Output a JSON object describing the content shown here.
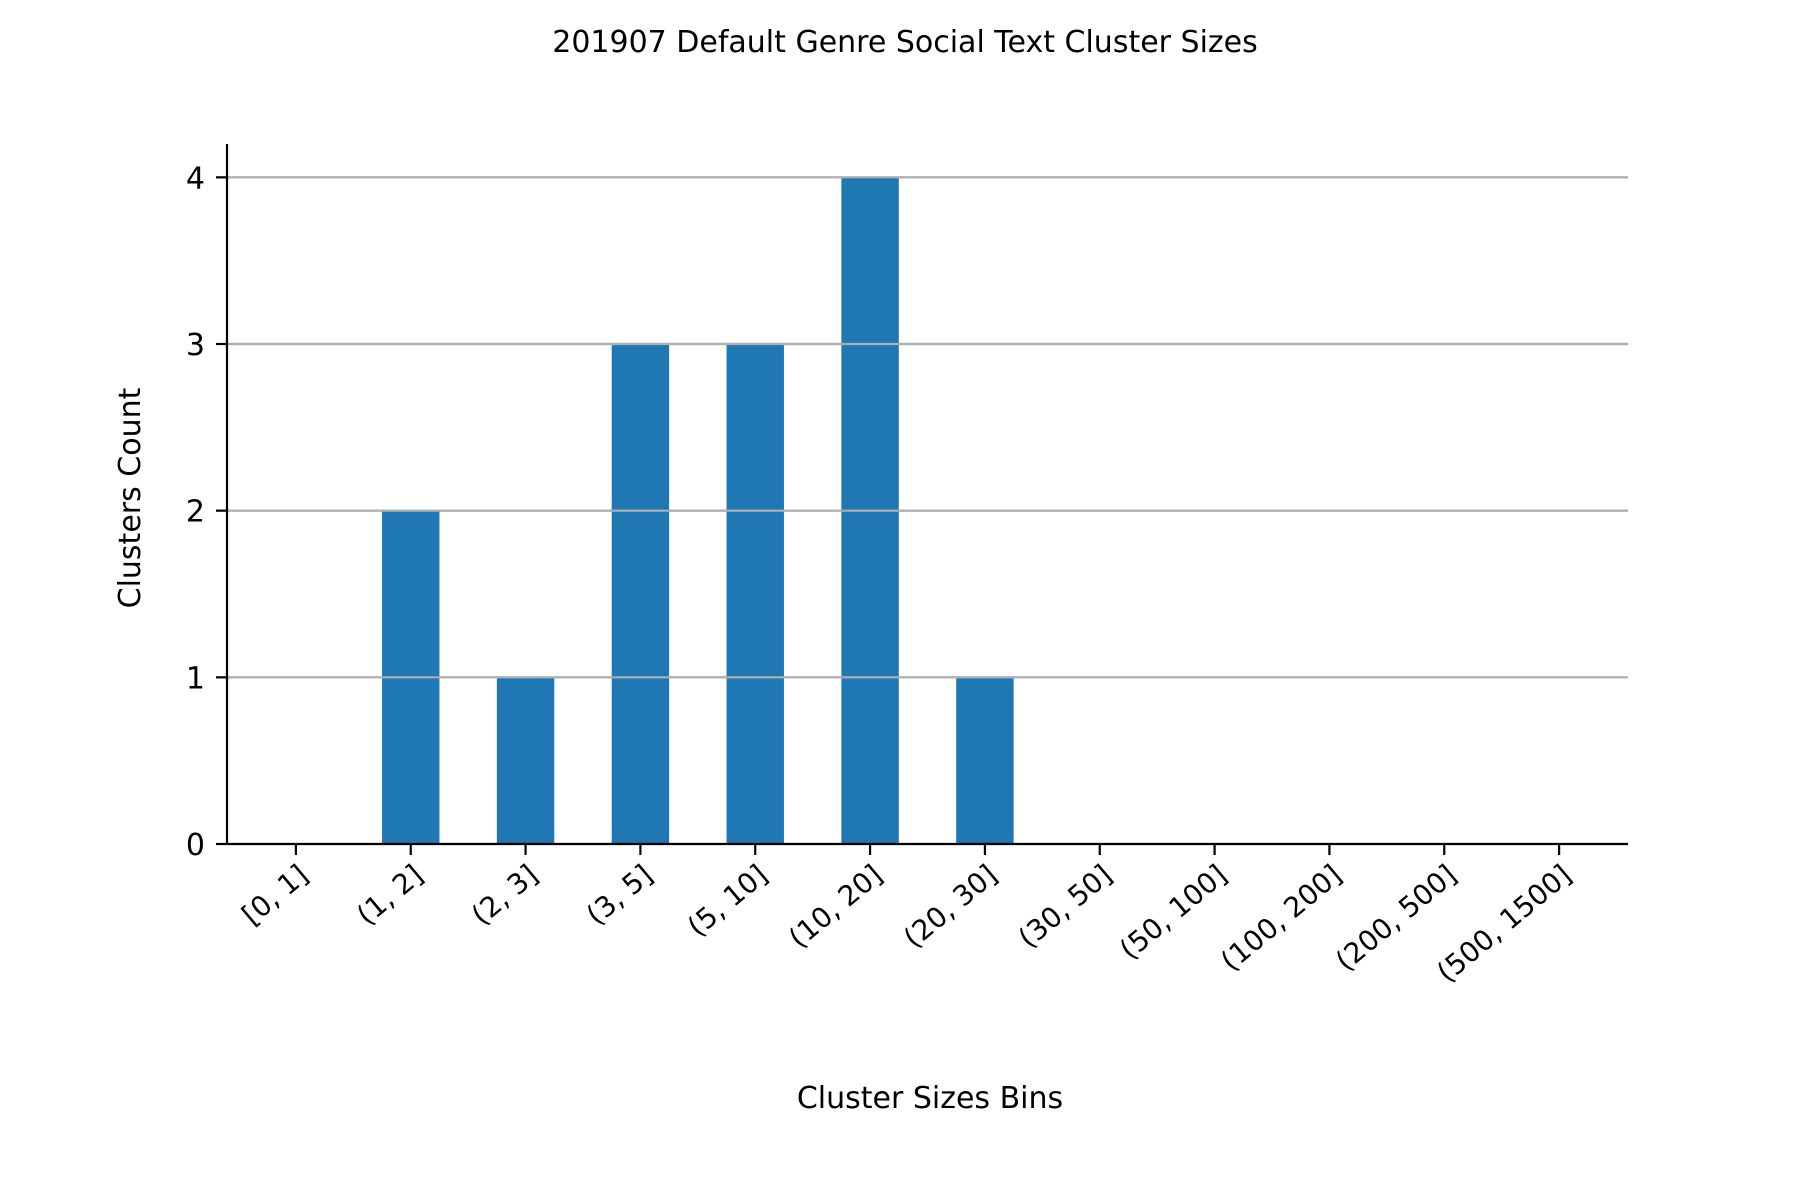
{
  "chart_data": {
    "type": "bar",
    "title": "201907 Default Genre Social Text Cluster Sizes",
    "xlabel": "Cluster Sizes Bins",
    "ylabel": "Clusters Count",
    "categories": [
      "[0, 1]",
      "(1, 2]",
      "(2, 3]",
      "(3, 5]",
      "(5, 10]",
      "(10, 20]",
      "(20, 30]",
      "(30, 50]",
      "(50, 100]",
      "(100, 200]",
      "(200, 500]",
      "(500, 1500]"
    ],
    "values": [
      0,
      2,
      1,
      3,
      3,
      4,
      1,
      0,
      0,
      0,
      0,
      0
    ],
    "yticks": [
      0,
      1,
      2,
      3,
      4
    ],
    "ylim": [
      0,
      4.2
    ],
    "grid": "horizontal",
    "legend": "none"
  },
  "colors": {
    "bar": "#1f77b4",
    "grid": "#b0b0b0",
    "axis": "#000000"
  }
}
